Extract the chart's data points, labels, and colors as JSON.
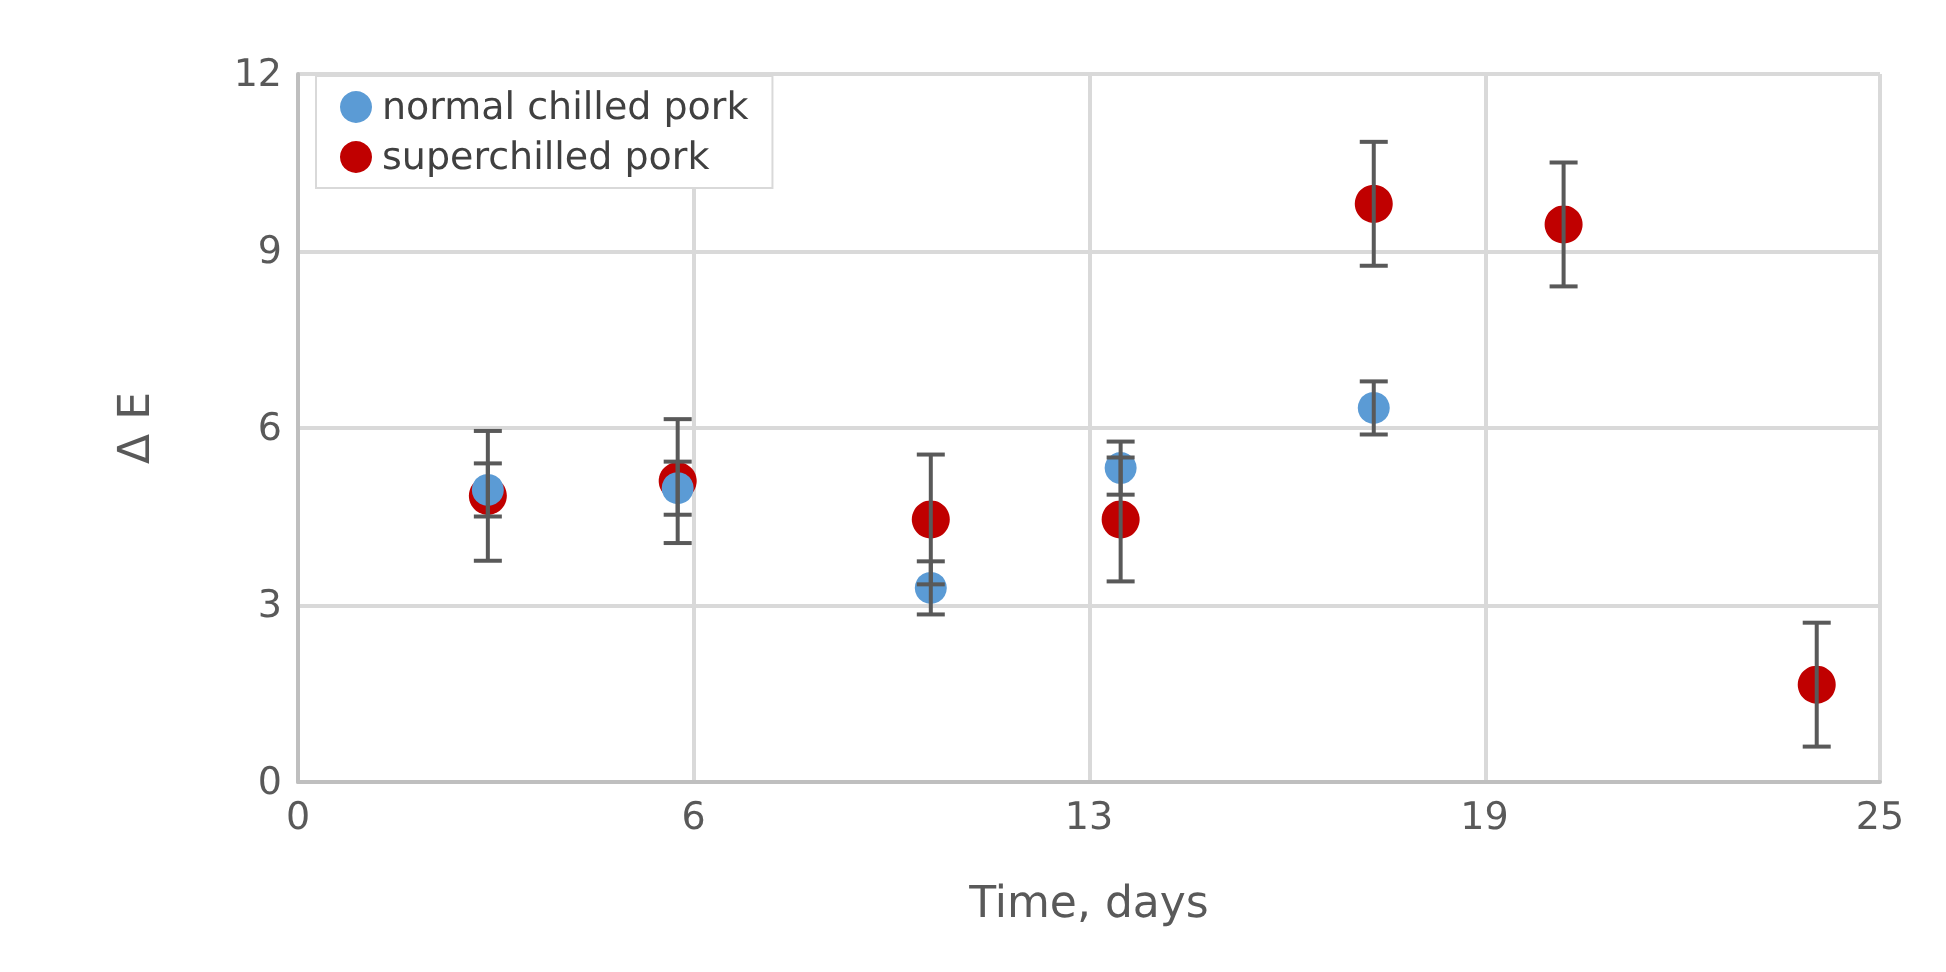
{
  "chart_data": {
    "type": "scatter",
    "xlabel": "Time, days",
    "ylabel": "Δ E",
    "xlim": [
      0,
      25
    ],
    "xticks": [
      0,
      {
        "value": 6.25,
        "label": "6"
      },
      {
        "value": 12.5,
        "label": "13"
      },
      {
        "value": 18.75,
        "label": "19"
      },
      25
    ],
    "ylim": [
      0,
      12
    ],
    "yticks": [
      0,
      3,
      6,
      9,
      12
    ],
    "grid": true,
    "legend": "top left",
    "marker": "circle",
    "series": [
      {
        "name": "normal chilled pork",
        "color": "#5b9bd5",
        "x": [
          3,
          6,
          10,
          13,
          17
        ],
        "values": [
          4.95,
          4.98,
          3.29,
          5.32,
          6.34
        ],
        "errors": [
          0.45,
          0.45,
          0.45,
          0.45,
          0.45
        ]
      },
      {
        "name": "superchilled pork",
        "color": "#c00000",
        "x": [
          3,
          6,
          10,
          13,
          17,
          20,
          24
        ],
        "values": [
          4.85,
          5.1,
          4.45,
          4.45,
          9.8,
          9.45,
          1.65
        ],
        "errors": [
          1.1,
          1.05,
          1.1,
          1.05,
          1.05,
          1.05,
          1.05
        ]
      }
    ]
  }
}
